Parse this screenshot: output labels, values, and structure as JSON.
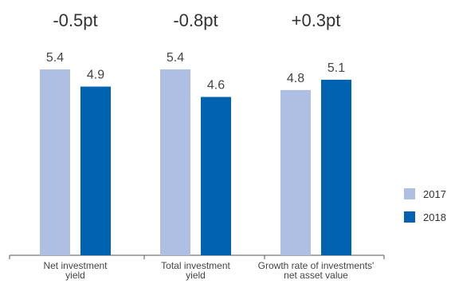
{
  "chart_data": {
    "type": "bar",
    "categories": [
      [
        "Net investment",
        "yield"
      ],
      [
        "Total investment",
        "yield"
      ],
      [
        "Growth rate of investments'",
        "net asset value"
      ]
    ],
    "series": [
      {
        "name": "2017",
        "values": [
          5.4,
          5.4,
          4.8
        ],
        "color": "#aebfe3"
      },
      {
        "name": "2018",
        "values": [
          4.9,
          4.6,
          5.1
        ],
        "color": "#0062b1"
      }
    ],
    "changes": [
      "-0.5pt",
      "-0.8pt",
      "+0.3pt"
    ],
    "data_labels": [
      [
        "5.4",
        "4.9"
      ],
      [
        "5.4",
        "4.6"
      ],
      [
        "4.8",
        "5.1"
      ]
    ],
    "ylim": [
      0,
      6
    ],
    "grid": false,
    "legend_position": "right",
    "title": "",
    "xlabel": "",
    "ylabel": ""
  },
  "legend": {
    "item_2017": "2017",
    "item_2018": "2018"
  }
}
